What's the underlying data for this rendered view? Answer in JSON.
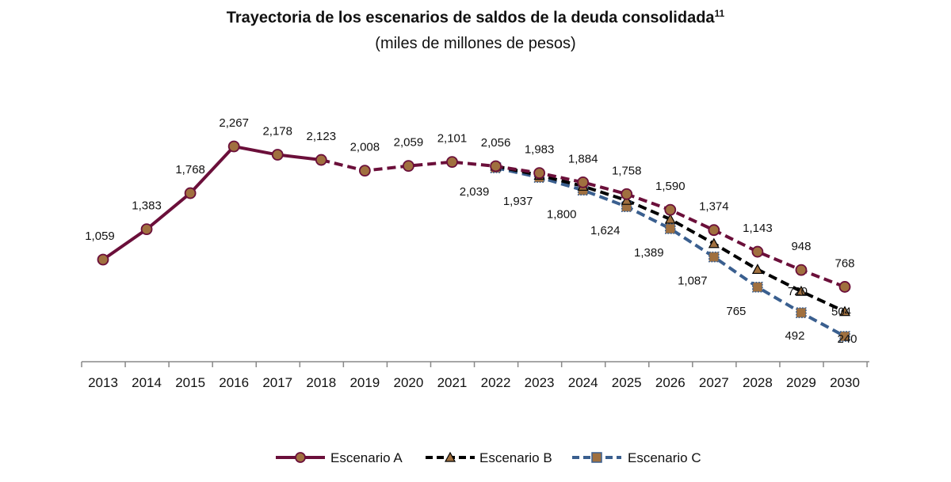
{
  "chart_data": {
    "type": "line",
    "title": "Trayectoria de los escenarios de saldos de la deuda consolidada",
    "title_footnote": "11",
    "subtitle": "(miles de millones de pesos)",
    "categories": [
      "2013",
      "2014",
      "2015",
      "2016",
      "2017",
      "2018",
      "2019",
      "2020",
      "2021",
      "2022",
      "2023",
      "2024",
      "2025",
      "2026",
      "2027",
      "2028",
      "2029",
      "2030"
    ],
    "series": [
      {
        "name": "Escenario A",
        "color": "#6b0f3a",
        "values": [
          1059,
          1383,
          1768,
          2267,
          2178,
          2123,
          2008,
          2059,
          2101,
          2056,
          1983,
          1884,
          1758,
          1590,
          1374,
          1143,
          948,
          768
        ],
        "labels": [
          "1,059",
          "1,383",
          "1,768",
          "2,267",
          "2,178",
          "2,123",
          "2,008",
          "2,059",
          "2,101",
          "2,056",
          "1,983",
          "1,884",
          "1,758",
          "1,590",
          "1,374",
          "1,143",
          "948",
          "768"
        ],
        "solid_until": "2018"
      },
      {
        "name": "Escenario B",
        "color": "#000000",
        "values": [
          null,
          null,
          null,
          null,
          null,
          null,
          null,
          null,
          null,
          2056,
          1960,
          1842,
          1691,
          1490,
          1230,
          954,
          720,
          504
        ],
        "labels": [
          null,
          null,
          null,
          null,
          null,
          null,
          null,
          null,
          null,
          null,
          null,
          null,
          null,
          null,
          null,
          null,
          "720",
          "504"
        ]
      },
      {
        "name": "Escenario C",
        "color": "#3a5f8f",
        "values": [
          null,
          null,
          null,
          null,
          null,
          null,
          null,
          null,
          null,
          2039,
          1937,
          1800,
          1624,
          1389,
          1087,
          765,
          492,
          240
        ],
        "labels": [
          null,
          null,
          null,
          null,
          null,
          null,
          null,
          null,
          null,
          "2,039",
          "1,937",
          "1,800",
          "1,624",
          "1,389",
          "1,087",
          "765",
          "492",
          "240"
        ]
      }
    ],
    "grid": false,
    "legend": "bottom",
    "marker_color": "#a0703f"
  }
}
